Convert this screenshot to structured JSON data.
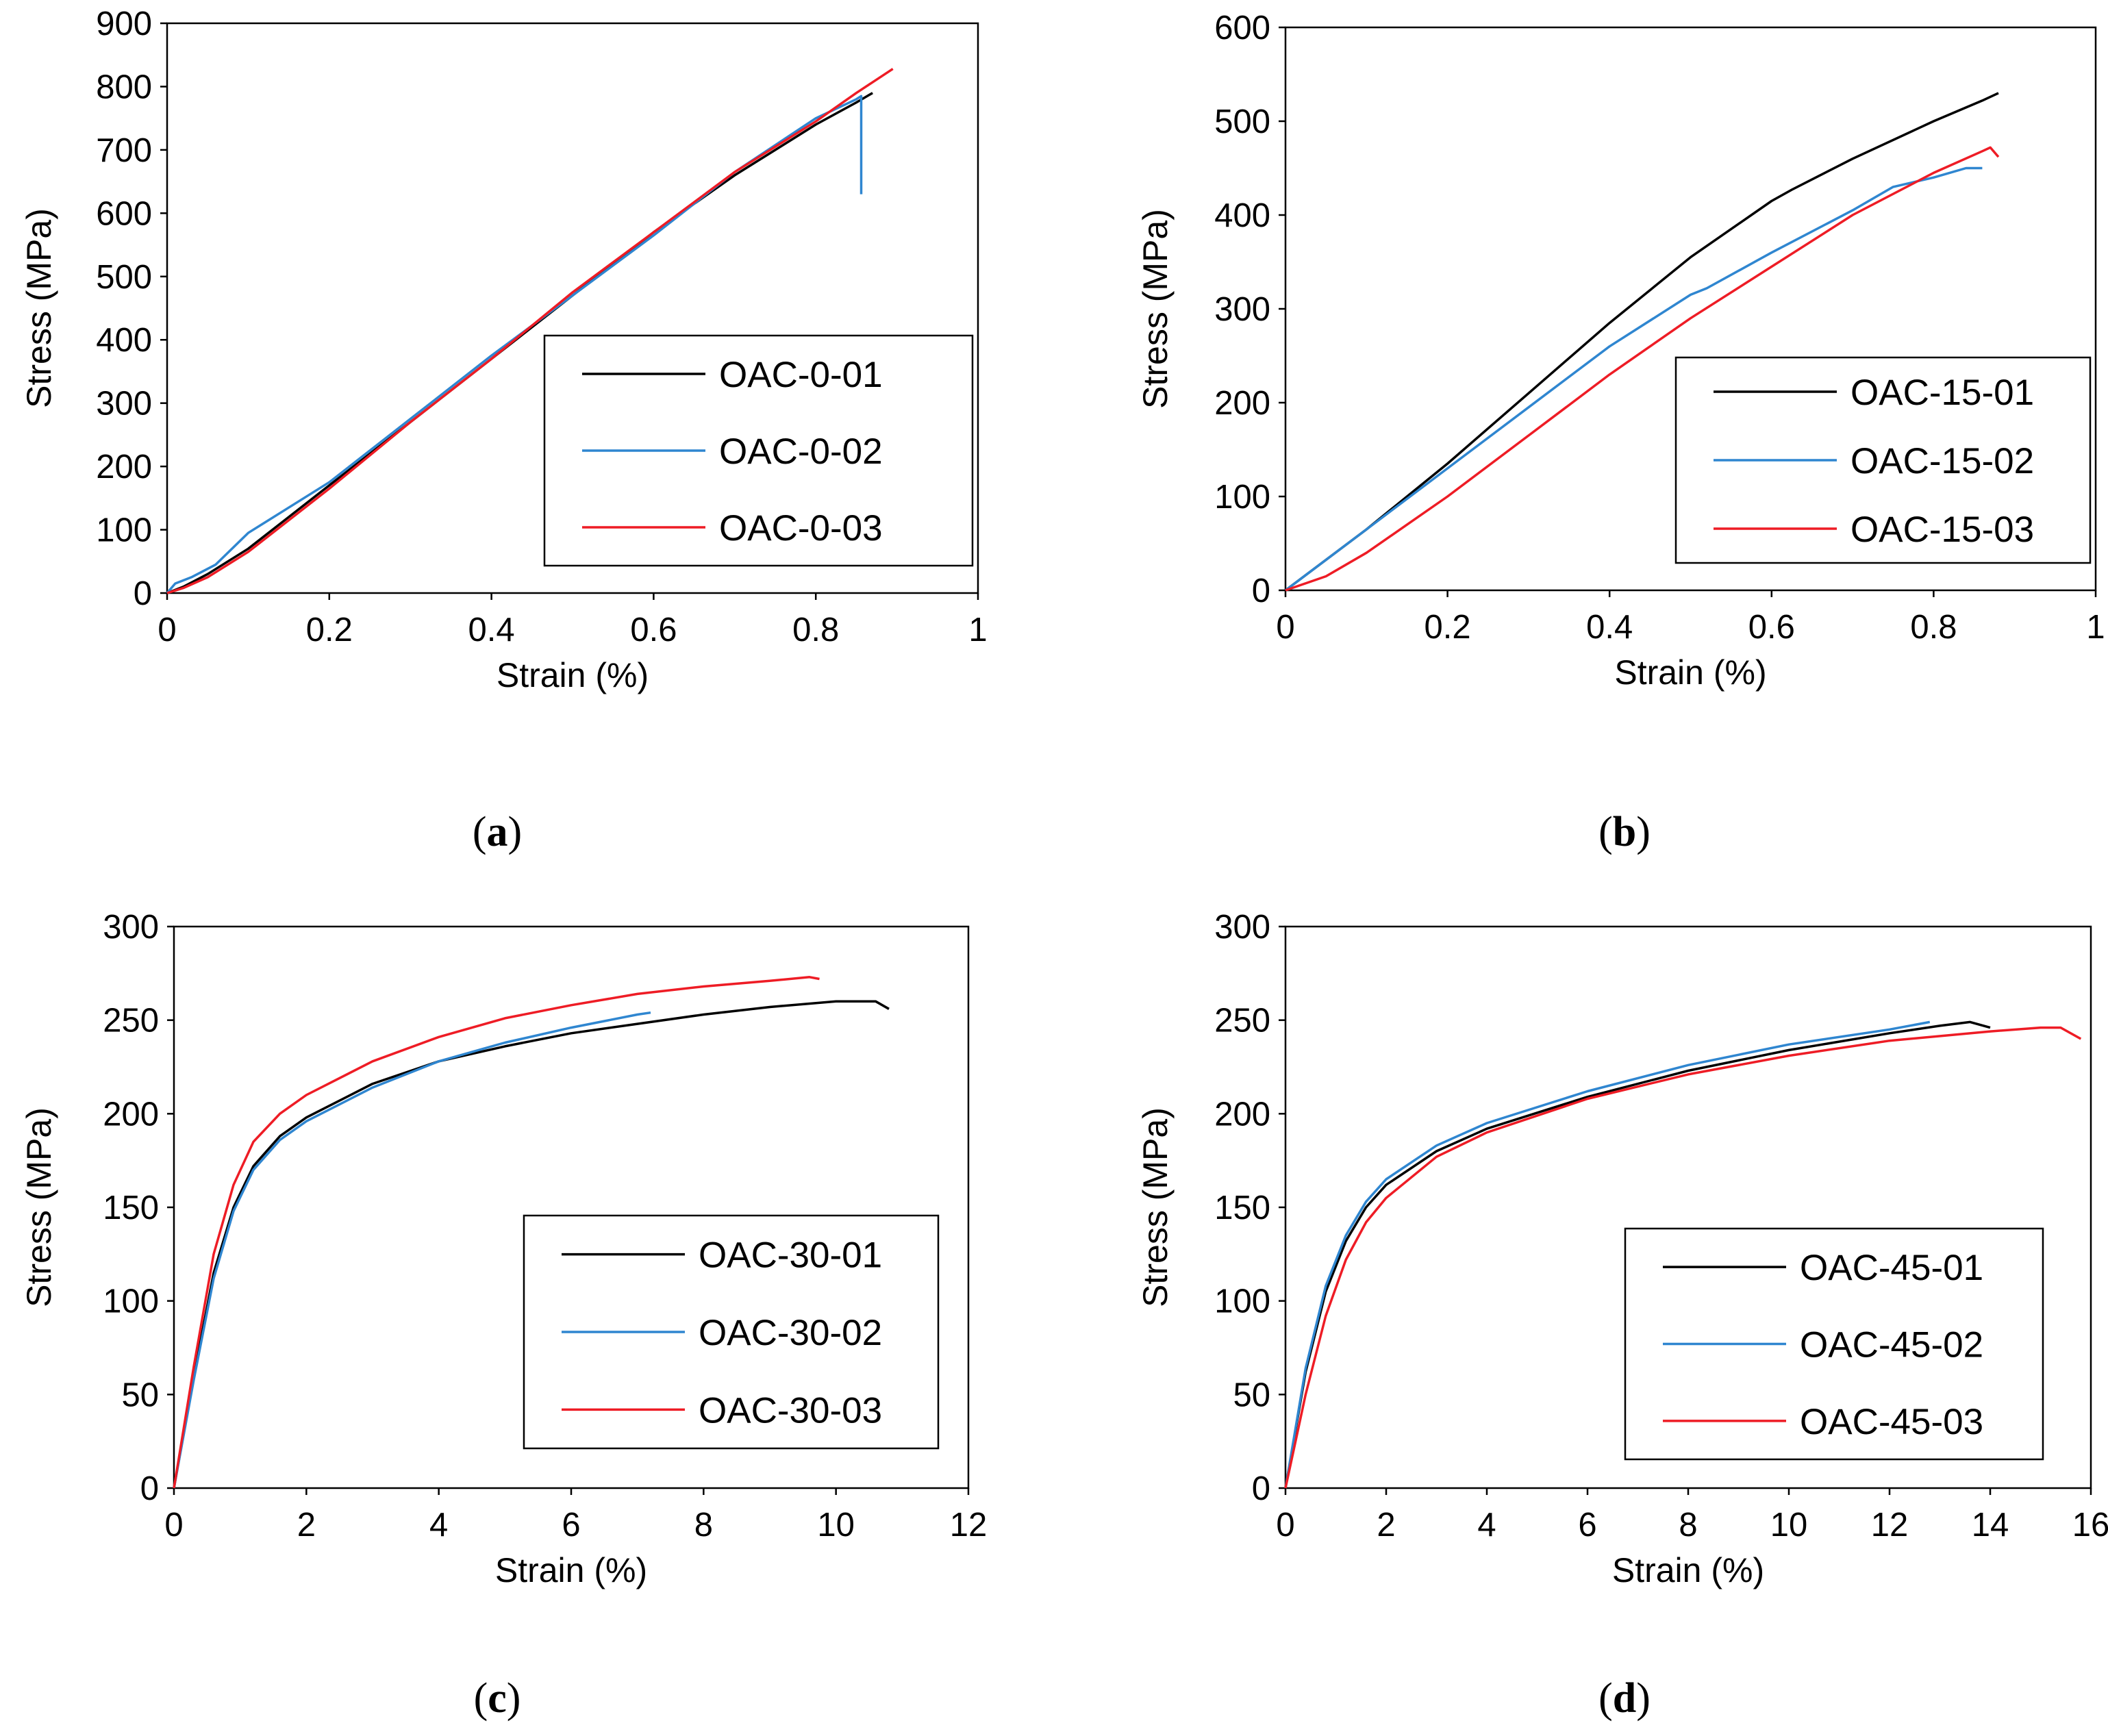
{
  "colors": {
    "black": "#000000",
    "blue": "#2f86d0",
    "red": "#ee1c25"
  },
  "chart_data": [
    {
      "id": "a",
      "type": "line",
      "caption": "a",
      "xlabel": "Strain (%)",
      "ylabel": "Stress (MPa)",
      "xlim": [
        0,
        1
      ],
      "ylim": [
        0,
        900
      ],
      "xticks": [
        0,
        0.2,
        0.4,
        0.6,
        0.8,
        1
      ],
      "xtick_labels": [
        "0",
        "0.2",
        "0.4",
        "0.6",
        "0.8",
        "1"
      ],
      "yticks": [
        0,
        100,
        200,
        300,
        400,
        500,
        600,
        700,
        800,
        900
      ],
      "ytick_labels": [
        "0",
        "100",
        "200",
        "300",
        "400",
        "500",
        "600",
        "700",
        "800",
        "900"
      ],
      "legend_position": "bottom-right",
      "series": [
        {
          "name": "OAC-0-01",
          "color": "#000000",
          "x": [
            0,
            0.02,
            0.05,
            0.1,
            0.2,
            0.3,
            0.4,
            0.5,
            0.6,
            0.7,
            0.8,
            0.85,
            0.87
          ],
          "y": [
            0,
            10,
            30,
            70,
            170,
            270,
            370,
            470,
            570,
            660,
            740,
            775,
            790
          ]
        },
        {
          "name": "OAC-0-02",
          "color": "#2f86d0",
          "x": [
            0,
            0.01,
            0.03,
            0.06,
            0.1,
            0.15,
            0.2,
            0.3,
            0.4,
            0.5,
            0.6,
            0.7,
            0.8,
            0.85,
            0.856,
            0.856
          ],
          "y": [
            0,
            15,
            25,
            45,
            95,
            135,
            175,
            275,
            375,
            470,
            565,
            665,
            750,
            780,
            785,
            630
          ]
        },
        {
          "name": "OAC-0-03",
          "color": "#ee1c25",
          "x": [
            0,
            0.02,
            0.05,
            0.1,
            0.2,
            0.3,
            0.4,
            0.5,
            0.6,
            0.7,
            0.8,
            0.85,
            0.895
          ],
          "y": [
            0,
            8,
            25,
            65,
            165,
            270,
            370,
            475,
            570,
            665,
            745,
            790,
            828
          ]
        }
      ]
    },
    {
      "id": "b",
      "type": "line",
      "caption": "b",
      "xlabel": "Strain (%)",
      "ylabel": "Stress (MPa)",
      "xlim": [
        0,
        1
      ],
      "ylim": [
        0,
        600
      ],
      "xticks": [
        0,
        0.2,
        0.4,
        0.6,
        0.8,
        1
      ],
      "xtick_labels": [
        "0",
        "0.2",
        "0.4",
        "0.6",
        "0.8",
        "1"
      ],
      "yticks": [
        0,
        100,
        200,
        300,
        400,
        500,
        600
      ],
      "ytick_labels": [
        "0",
        "100",
        "200",
        "300",
        "400",
        "500",
        "600"
      ],
      "legend_position": "bottom-right",
      "series": [
        {
          "name": "OAC-15-01",
          "color": "#000000",
          "x": [
            0,
            0.1,
            0.2,
            0.3,
            0.4,
            0.5,
            0.6,
            0.625,
            0.7,
            0.8,
            0.86,
            0.88
          ],
          "y": [
            0,
            65,
            135,
            210,
            285,
            355,
            415,
            427,
            460,
            500,
            522,
            530
          ]
        },
        {
          "name": "OAC-15-02",
          "color": "#2f86d0",
          "x": [
            0,
            0.1,
            0.2,
            0.3,
            0.4,
            0.5,
            0.52,
            0.6,
            0.7,
            0.75,
            0.8,
            0.84,
            0.86
          ],
          "y": [
            0,
            65,
            130,
            195,
            260,
            315,
            322,
            360,
            405,
            430,
            440,
            450,
            450
          ]
        },
        {
          "name": "OAC-15-03",
          "color": "#ee1c25",
          "x": [
            0,
            0.05,
            0.1,
            0.2,
            0.3,
            0.4,
            0.5,
            0.6,
            0.7,
            0.8,
            0.86,
            0.87,
            0.88
          ],
          "y": [
            0,
            15,
            40,
            100,
            165,
            230,
            290,
            345,
            400,
            445,
            468,
            472,
            462
          ]
        }
      ]
    },
    {
      "id": "c",
      "type": "line",
      "caption": "c",
      "xlabel": "Strain (%)",
      "ylabel": "Stress (MPa)",
      "xlim": [
        0,
        12
      ],
      "ylim": [
        0,
        300
      ],
      "xticks": [
        0,
        2,
        4,
        6,
        8,
        10,
        12
      ],
      "xtick_labels": [
        "0",
        "2",
        "4",
        "6",
        "8",
        "10",
        "12"
      ],
      "yticks": [
        0,
        50,
        100,
        150,
        200,
        250,
        300
      ],
      "ytick_labels": [
        "0",
        "50",
        "100",
        "150",
        "200",
        "250",
        "300"
      ],
      "legend_position": "bottom-right",
      "series": [
        {
          "name": "OAC-30-01",
          "color": "#000000",
          "x": [
            0,
            0.3,
            0.6,
            0.9,
            1.2,
            1.6,
            2,
            3,
            4,
            5,
            6,
            7,
            8,
            9,
            10,
            10.6,
            10.8
          ],
          "y": [
            0,
            60,
            115,
            150,
            172,
            188,
            198,
            216,
            228,
            236,
            243,
            248,
            253,
            257,
            260,
            260,
            256
          ]
        },
        {
          "name": "OAC-30-02",
          "color": "#2f86d0",
          "x": [
            0,
            0.3,
            0.6,
            0.9,
            1.2,
            1.6,
            2,
            3,
            4,
            5,
            6,
            7,
            7.2
          ],
          "y": [
            0,
            58,
            112,
            148,
            170,
            186,
            196,
            214,
            228,
            238,
            246,
            253,
            254
          ]
        },
        {
          "name": "OAC-30-03",
          "color": "#ee1c25",
          "x": [
            0,
            0.3,
            0.6,
            0.9,
            1.2,
            1.6,
            2,
            3,
            4,
            5,
            6,
            7,
            8,
            9,
            9.6,
            9.75
          ],
          "y": [
            0,
            65,
            125,
            162,
            185,
            200,
            210,
            228,
            241,
            251,
            258,
            264,
            268,
            271,
            273,
            272
          ]
        }
      ]
    },
    {
      "id": "d",
      "type": "line",
      "caption": "d",
      "xlabel": "Strain (%)",
      "ylabel": "Stress (MPa)",
      "xlim": [
        0,
        16
      ],
      "ylim": [
        0,
        300
      ],
      "xticks": [
        0,
        2,
        4,
        6,
        8,
        10,
        12,
        14,
        16
      ],
      "xtick_labels": [
        "0",
        "2",
        "4",
        "6",
        "8",
        "10",
        "12",
        "14",
        "16"
      ],
      "yticks": [
        0,
        50,
        100,
        150,
        200,
        250,
        300
      ],
      "ytick_labels": [
        "0",
        "50",
        "100",
        "150",
        "200",
        "250",
        "300"
      ],
      "legend_position": "bottom-right",
      "series": [
        {
          "name": "OAC-45-01",
          "color": "#000000",
          "x": [
            0,
            0.4,
            0.8,
            1.2,
            1.6,
            2,
            3,
            4,
            6,
            8,
            10,
            12,
            13,
            13.6,
            14
          ],
          "y": [
            0,
            62,
            105,
            132,
            150,
            162,
            180,
            192,
            209,
            223,
            234,
            243,
            247,
            249,
            246
          ]
        },
        {
          "name": "OAC-45-02",
          "color": "#2f86d0",
          "x": [
            0,
            0.4,
            0.8,
            1.2,
            1.6,
            2,
            3,
            4,
            6,
            8,
            10,
            12,
            12.8
          ],
          "y": [
            0,
            64,
            108,
            135,
            153,
            165,
            183,
            195,
            212,
            226,
            237,
            245,
            249
          ]
        },
        {
          "name": "OAC-45-03",
          "color": "#ee1c25",
          "x": [
            0,
            0.4,
            0.8,
            1.2,
            1.6,
            2,
            3,
            4,
            6,
            8,
            10,
            12,
            14,
            15,
            15.4,
            15.8
          ],
          "y": [
            0,
            50,
            92,
            122,
            142,
            155,
            177,
            190,
            208,
            221,
            231,
            239,
            244,
            246,
            246,
            240
          ]
        }
      ]
    }
  ]
}
